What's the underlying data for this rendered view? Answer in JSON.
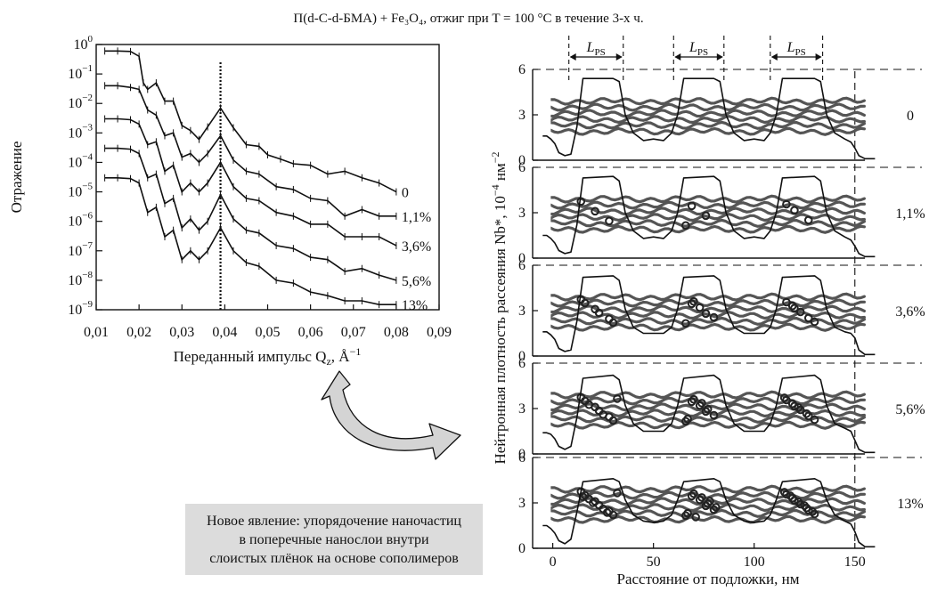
{
  "figure_title": "П(d-С-d-БМА) + Fe₃O₄, отжиг при T = 100 °С в течение 3-х ч.",
  "note": {
    "lines": [
      "Новое явление: упорядочение наночастиц",
      "в поперечные нанослои внутри",
      "слоистых плёнок на основе сополимеров"
    ]
  },
  "colors": {
    "ink": "#111111",
    "note_background": "#dcdcdc",
    "arrow_fill": "#d4d4d4"
  },
  "icons": {
    "transition_arrow": "curved-arrow-icon"
  },
  "chart_data": [
    {
      "type": "line",
      "xlabel": "Переданный импульс Q",
      "xlabel_sub": "z",
      "xlabel_unit": ", Å",
      "xlabel_exp": "−1",
      "ylabel": "Отражение",
      "yscale": "log",
      "xlim": [
        0.01,
        0.09
      ],
      "ylim": [
        1e-09,
        1
      ],
      "xticks": [
        "0,01",
        "0,02",
        "0,03",
        "0,04",
        "0,05",
        "0,06",
        "0,07",
        "0,08",
        "0,09"
      ],
      "yticks": [
        {
          "base": "10",
          "exp": "0"
        },
        {
          "base": "10",
          "exp": "−1"
        },
        {
          "base": "10",
          "exp": "−2"
        },
        {
          "base": "10",
          "exp": "−3"
        },
        {
          "base": "10",
          "exp": "−4"
        },
        {
          "base": "10",
          "exp": "−5"
        },
        {
          "base": "10",
          "exp": "−6"
        },
        {
          "base": "10",
          "exp": "−7"
        },
        {
          "base": "10",
          "exp": "−8"
        },
        {
          "base": "10",
          "exp": "−9"
        }
      ],
      "vline_x": 0.039,
      "series": [
        {
          "name": "0",
          "x": [
            0.012,
            0.015,
            0.018,
            0.02,
            0.021,
            0.022,
            0.024,
            0.026,
            0.028,
            0.03,
            0.032,
            0.034,
            0.036,
            0.039,
            0.042,
            0.045,
            0.048,
            0.05,
            0.053,
            0.056,
            0.06,
            0.064,
            0.068,
            0.072,
            0.076,
            0.08
          ],
          "y": [
            0.6,
            0.6,
            0.58,
            0.4,
            0.05,
            0.03,
            0.05,
            0.012,
            0.012,
            0.0018,
            0.0012,
            0.0006,
            0.0016,
            0.007,
            0.0015,
            0.0004,
            0.00035,
            0.00018,
            0.00013,
            9e-05,
            8e-05,
            4e-05,
            5e-05,
            3e-05,
            2e-05,
            1e-05
          ]
        },
        {
          "name": "1,1%",
          "x": [
            0.012,
            0.015,
            0.018,
            0.02,
            0.022,
            0.024,
            0.026,
            0.028,
            0.03,
            0.032,
            0.034,
            0.036,
            0.039,
            0.042,
            0.045,
            0.048,
            0.052,
            0.056,
            0.06,
            0.064,
            0.068,
            0.072,
            0.076,
            0.08
          ],
          "y": [
            0.04,
            0.04,
            0.035,
            0.03,
            0.006,
            0.004,
            0.0008,
            0.001,
            0.00015,
            0.0002,
            0.0001,
            0.0002,
            0.0008,
            0.00012,
            5e-05,
            4e-05,
            1.5e-05,
            1.2e-05,
            6e-06,
            5e-06,
            1.5e-06,
            2.5e-06,
            1.5e-06,
            1.5e-06
          ]
        },
        {
          "name": "3,6%",
          "x": [
            0.012,
            0.015,
            0.018,
            0.02,
            0.022,
            0.024,
            0.026,
            0.028,
            0.03,
            0.032,
            0.034,
            0.036,
            0.039,
            0.042,
            0.045,
            0.048,
            0.052,
            0.056,
            0.06,
            0.064,
            0.068,
            0.072,
            0.076,
            0.08
          ],
          "y": [
            0.003,
            0.003,
            0.0028,
            0.002,
            0.0004,
            0.0005,
            5e-05,
            8e-05,
            1e-05,
            2e-05,
            1e-05,
            2e-05,
            0.0001,
            1.5e-05,
            6e-06,
            5e-06,
            2e-06,
            1.5e-06,
            8e-07,
            8e-07,
            3e-07,
            3e-07,
            3e-07,
            1.5e-07
          ]
        },
        {
          "name": "5,6%",
          "x": [
            0.012,
            0.015,
            0.018,
            0.02,
            0.022,
            0.024,
            0.026,
            0.028,
            0.03,
            0.032,
            0.034,
            0.036,
            0.039,
            0.042,
            0.045,
            0.048,
            0.052,
            0.056,
            0.06,
            0.064,
            0.068,
            0.072,
            0.076,
            0.08
          ],
          "y": [
            0.0003,
            0.0003,
            0.00028,
            0.0002,
            3e-05,
            4e-05,
            4e-06,
            6e-06,
            6e-07,
            1.2e-06,
            5e-07,
            1e-06,
            8e-06,
            1.2e-06,
            5e-07,
            4e-07,
            1.5e-07,
            1.2e-07,
            6e-08,
            5e-08,
            2e-08,
            2.5e-08,
            1.5e-08,
            1e-08
          ]
        },
        {
          "name": "13%",
          "x": [
            0.012,
            0.015,
            0.018,
            0.02,
            0.022,
            0.024,
            0.026,
            0.028,
            0.03,
            0.032,
            0.034,
            0.036,
            0.039,
            0.042,
            0.045,
            0.048,
            0.052,
            0.056,
            0.06,
            0.064,
            0.068,
            0.072,
            0.076,
            0.08
          ],
          "y": [
            3e-05,
            3e-05,
            2.8e-05,
            2e-05,
            2e-06,
            3e-06,
            3e-07,
            5e-07,
            5e-08,
            1e-07,
            5e-08,
            1e-07,
            6e-07,
            1e-07,
            4e-08,
            3e-08,
            1e-08,
            8e-09,
            4e-09,
            3e-09,
            2e-09,
            2e-09,
            1.5e-09,
            1.5e-09
          ]
        }
      ],
      "grid": false
    },
    {
      "type": "line",
      "xlabel": "Расстояние от подложки, нм",
      "ylabel": "Нейтронная плотность рассеяния Nb*, 10",
      "ylabel_exp": "−4",
      "ylabel_unit": " нм",
      "ylabel_unit_exp": "−2",
      "xlim": [
        -10,
        170
      ],
      "ylim": [
        0,
        6
      ],
      "xticks": [
        "0",
        "50",
        "100",
        "150"
      ],
      "yticks": [
        "0",
        "3",
        "6"
      ],
      "annotation": {
        "base": "L",
        "sub": "PS"
      },
      "lps_intervals": [
        [
          8,
          35
        ],
        [
          60,
          85
        ],
        [
          108,
          134
        ]
      ],
      "boundary_x": 150,
      "panels": [
        {
          "label": "0",
          "x": [
            -5,
            -3,
            -1,
            1,
            3,
            6,
            9,
            12,
            15,
            30,
            33,
            36,
            40,
            45,
            50,
            55,
            59,
            62,
            65,
            80,
            83,
            86,
            90,
            95,
            100,
            105,
            108,
            111,
            114,
            130,
            133,
            136,
            140,
            145,
            148,
            150,
            152,
            155,
            160
          ],
          "y": [
            1.6,
            1.6,
            1.4,
            1.1,
            0.5,
            0.3,
            0.4,
            2.2,
            5.4,
            5.4,
            5.2,
            3,
            1.8,
            1.3,
            1.4,
            1.3,
            1.8,
            3,
            5.4,
            5.4,
            5.2,
            3,
            1.8,
            1.3,
            1.4,
            1.3,
            1.8,
            3,
            5.4,
            5.4,
            5.2,
            3,
            1.8,
            1.4,
            1.2,
            0.8,
            0.3,
            0.1,
            0.1
          ]
        },
        {
          "label": "1,1%",
          "x": [
            -5,
            -3,
            -1,
            1,
            3,
            6,
            9,
            12,
            15,
            30,
            33,
            36,
            40,
            45,
            50,
            55,
            59,
            62,
            65,
            80,
            83,
            86,
            90,
            95,
            100,
            105,
            108,
            111,
            114,
            130,
            133,
            136,
            140,
            145,
            148,
            150,
            152,
            155,
            160
          ],
          "y": [
            1.5,
            1.5,
            1.3,
            1,
            0.5,
            0.3,
            0.4,
            2.2,
            5.3,
            5.4,
            5.1,
            3,
            1.8,
            1.3,
            1.4,
            1.3,
            1.8,
            3,
            5.3,
            5.4,
            5.1,
            3,
            1.8,
            1.3,
            1.4,
            1.3,
            1.8,
            3,
            5.3,
            5.4,
            5.1,
            3,
            1.8,
            1.4,
            1.2,
            0.8,
            0.3,
            0.1,
            0.1
          ]
        },
        {
          "label": "3,6%",
          "x": [
            -5,
            -3,
            -1,
            1,
            3,
            6,
            9,
            12,
            15,
            30,
            33,
            36,
            40,
            45,
            50,
            55,
            59,
            62,
            65,
            80,
            83,
            86,
            90,
            95,
            100,
            105,
            108,
            111,
            114,
            130,
            133,
            136,
            140,
            145,
            148,
            150,
            152,
            155,
            160
          ],
          "y": [
            1.6,
            1.6,
            1.4,
            1.1,
            0.5,
            0.3,
            0.4,
            2.3,
            5.2,
            5.3,
            5,
            3.1,
            1.9,
            1.5,
            1.5,
            1.5,
            1.9,
            3.1,
            5.2,
            5.3,
            5,
            3.1,
            1.9,
            1.5,
            1.5,
            1.5,
            1.9,
            3.1,
            5.2,
            5.3,
            5,
            3.1,
            1.9,
            1.6,
            1.5,
            1.2,
            0.4,
            0.1,
            0.1
          ]
        },
        {
          "label": "5,6%",
          "x": [
            -5,
            -3,
            -1,
            1,
            3,
            6,
            9,
            12,
            15,
            30,
            33,
            36,
            40,
            45,
            50,
            55,
            59,
            62,
            65,
            80,
            83,
            86,
            90,
            95,
            100,
            105,
            108,
            111,
            114,
            130,
            133,
            136,
            140,
            145,
            148,
            150,
            152,
            155,
            160
          ],
          "y": [
            1.4,
            1.4,
            1.3,
            1,
            0.5,
            0.3,
            0.5,
            2.4,
            5,
            5.2,
            4.9,
            3.2,
            2,
            1.5,
            1.5,
            1.5,
            2,
            3.2,
            5,
            5.2,
            4.9,
            3.2,
            2,
            1.5,
            1.5,
            1.5,
            2,
            3.2,
            5,
            5.2,
            4.9,
            3.2,
            2,
            1.7,
            1.5,
            0.9,
            0.3,
            0.1,
            0.1
          ]
        },
        {
          "label": "13%",
          "x": [
            -5,
            -3,
            -1,
            1,
            3,
            6,
            9,
            12,
            15,
            30,
            33,
            36,
            40,
            45,
            50,
            55,
            59,
            62,
            65,
            80,
            83,
            86,
            90,
            95,
            100,
            105,
            108,
            111,
            114,
            130,
            133,
            136,
            140,
            145,
            148,
            150,
            152,
            155,
            160
          ],
          "y": [
            1.5,
            1.5,
            1.3,
            1,
            0.5,
            0.3,
            0.6,
            2.4,
            4.4,
            4.6,
            4.4,
            3.2,
            2.2,
            1.8,
            1.7,
            1.8,
            2.2,
            3.2,
            4.4,
            4.6,
            4.4,
            3.2,
            2.2,
            1.8,
            1.7,
            1.8,
            2.2,
            3.2,
            4.4,
            4.6,
            4.4,
            3.2,
            2.2,
            1.8,
            1.6,
            1.1,
            0.4,
            0.1,
            0.1
          ]
        }
      ],
      "grid": false
    }
  ]
}
